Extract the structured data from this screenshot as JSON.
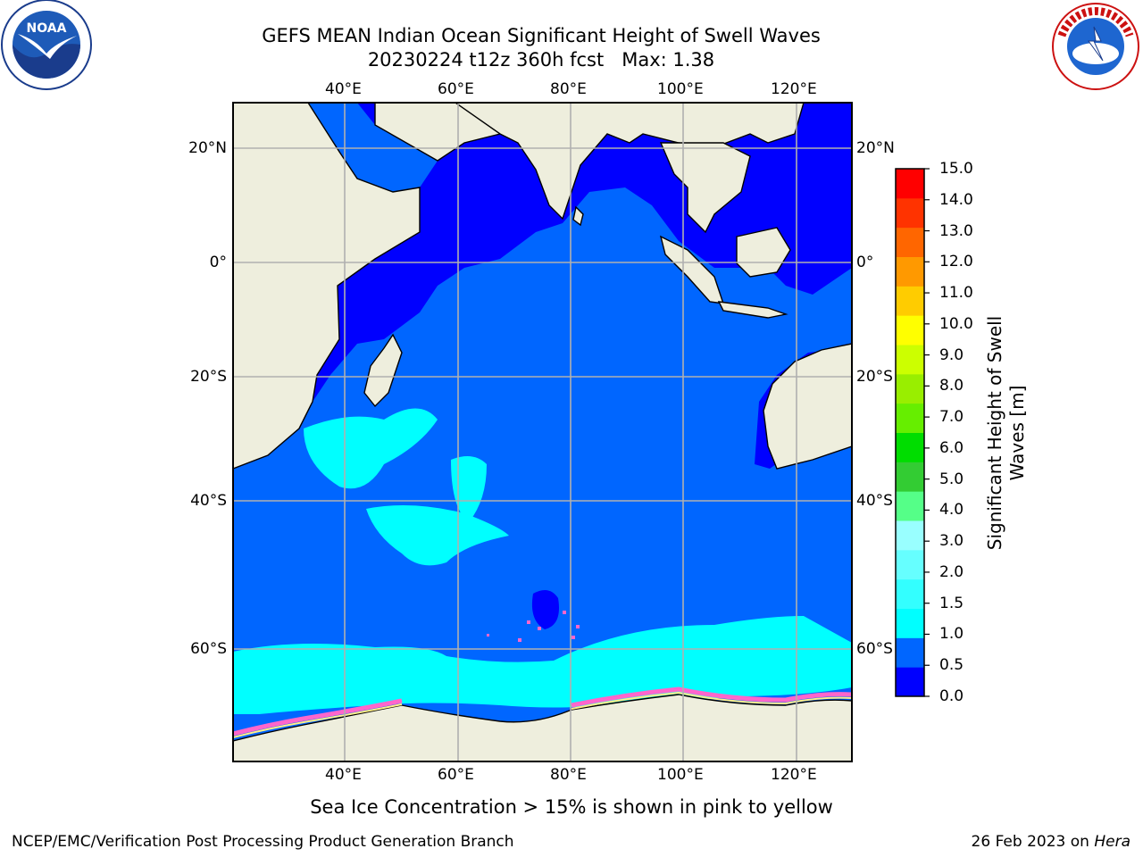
{
  "header": {
    "title": "GEFS MEAN Indian Ocean Significant Height of Swell Waves",
    "subtitle": "20230224 t12z 360h fcst   Max: 1.38"
  },
  "logos": {
    "left": "noaa-logo",
    "right": "national-weather-service-logo"
  },
  "map": {
    "region": "Indian Ocean",
    "lon_labels": [
      "40°E",
      "60°E",
      "80°E",
      "100°E",
      "120°E"
    ],
    "lat_labels": [
      "20°N",
      "0°",
      "20°S",
      "40°S",
      "60°S"
    ],
    "land_color": "#eeeedd",
    "ice_note": "Sea Ice Concentration > 15% is shown in pink to yellow"
  },
  "chart_data": {
    "type": "heatmap",
    "title": "GEFS MEAN Indian Ocean Significant Height of Swell Waves",
    "max_value": 1.38,
    "colorbar": {
      "label": "Significant Height of Swell\nWaves [m]",
      "ticks": [
        "0.0",
        "0.5",
        "1.0",
        "1.5",
        "2.0",
        "3.0",
        "4.0",
        "5.0",
        "6.0",
        "7.0",
        "8.0",
        "9.0",
        "10.0",
        "11.0",
        "12.0",
        "13.0",
        "14.0",
        "15.0"
      ],
      "colors": [
        "#0000ff",
        "#0066ff",
        "#00ffff",
        "#33ffff",
        "#66ffff",
        "#99ffff",
        "#55ff88",
        "#33cc33",
        "#00dd00",
        "#66ee00",
        "#99ee00",
        "#ccff00",
        "#ffff00",
        "#ffcc00",
        "#ff9900",
        "#ff6600",
        "#ff3300",
        "#ff0000"
      ]
    }
  },
  "footer": {
    "credit_left": "NCEP/EMC/Verification Post Processing Product Generation Branch",
    "date": "26 Feb 2023 on",
    "host": "Hera"
  }
}
